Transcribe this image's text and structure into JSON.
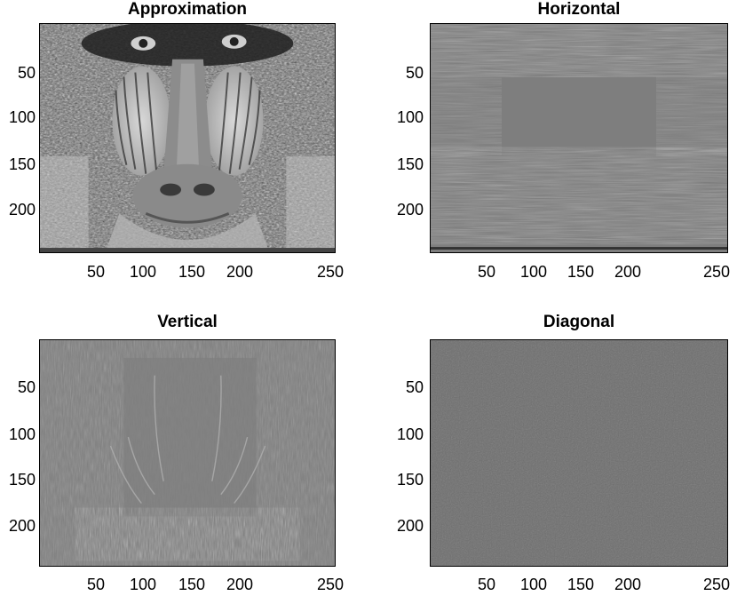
{
  "panels": [
    {
      "title": "Approximation",
      "y_ticks": [
        "50",
        "100",
        "150",
        "200"
      ],
      "x_ticks": [
        "50",
        "100",
        "150",
        "200",
        "250"
      ],
      "tone": "#8a8a8a"
    },
    {
      "title": "Horizontal",
      "y_ticks": [
        "50",
        "100",
        "150",
        "200"
      ],
      "x_ticks": [
        "50",
        "100",
        "150",
        "200",
        "250"
      ],
      "tone": "#808080"
    },
    {
      "title": "Vertical",
      "y_ticks": [
        "50",
        "100",
        "150",
        "200"
      ],
      "x_ticks": [
        "50",
        "100",
        "150",
        "200",
        "250"
      ],
      "tone": "#7f7f7f"
    },
    {
      "title": "Diagonal",
      "y_ticks": [
        "50",
        "100",
        "150",
        "200"
      ],
      "x_ticks": [
        "50",
        "100",
        "150",
        "200",
        "250"
      ],
      "tone": "#707070"
    }
  ]
}
